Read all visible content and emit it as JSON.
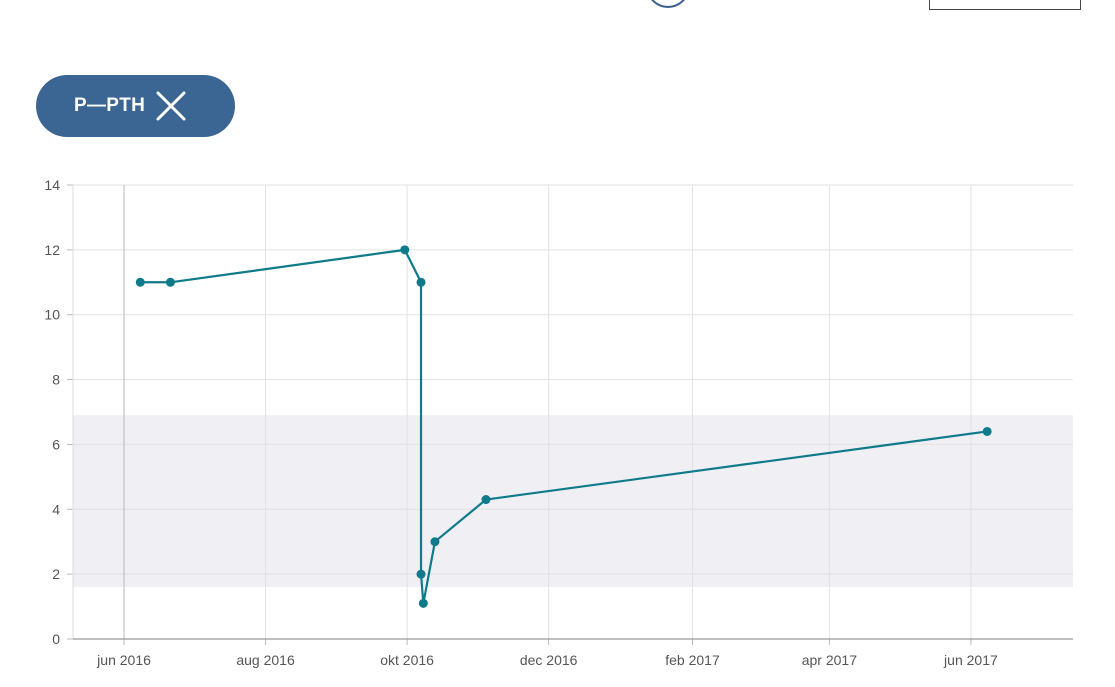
{
  "filter_chip": {
    "label": "P—PTH",
    "close_icon": "close-icon"
  },
  "colors": {
    "series": "#0e7a8a",
    "reference_band": "#efeff4",
    "chip_background": "#3b6592",
    "grid": "#e2e2e2"
  },
  "chart_data": {
    "type": "line",
    "title": "",
    "xlabel": "",
    "ylabel": "",
    "ylim": [
      0,
      14
    ],
    "xlim": [
      "2016-05-10",
      "2017-07-15"
    ],
    "yticks": [
      "0",
      "2",
      "4",
      "6",
      "8",
      "10",
      "12",
      "14"
    ],
    "xticks": [
      {
        "date": "2016-06-01",
        "label": "jun 2016"
      },
      {
        "date": "2016-08-01",
        "label": "aug 2016"
      },
      {
        "date": "2016-10-01",
        "label": "okt 2016"
      },
      {
        "date": "2016-12-01",
        "label": "dec 2016"
      },
      {
        "date": "2017-02-01",
        "label": "feb 2017"
      },
      {
        "date": "2017-04-01",
        "label": "apr 2017"
      },
      {
        "date": "2017-06-01",
        "label": "jun 2017"
      }
    ],
    "reference_range": [
      1.6,
      6.9
    ],
    "grid": true,
    "series": [
      {
        "points": [
          {
            "x": "2016-06-08",
            "y": 11
          },
          {
            "x": "2016-06-21",
            "y": 11
          },
          {
            "x": "2016-09-30",
            "y": 12
          },
          {
            "x": "2016-10-07",
            "y": 11
          },
          {
            "x": "2016-10-07",
            "y": 2
          },
          {
            "x": "2016-10-08",
            "y": 1.1
          },
          {
            "x": "2016-10-13",
            "y": 3
          },
          {
            "x": "2016-11-04",
            "y": 4.3
          },
          {
            "x": "2017-06-08",
            "y": 6.4
          }
        ]
      }
    ]
  }
}
